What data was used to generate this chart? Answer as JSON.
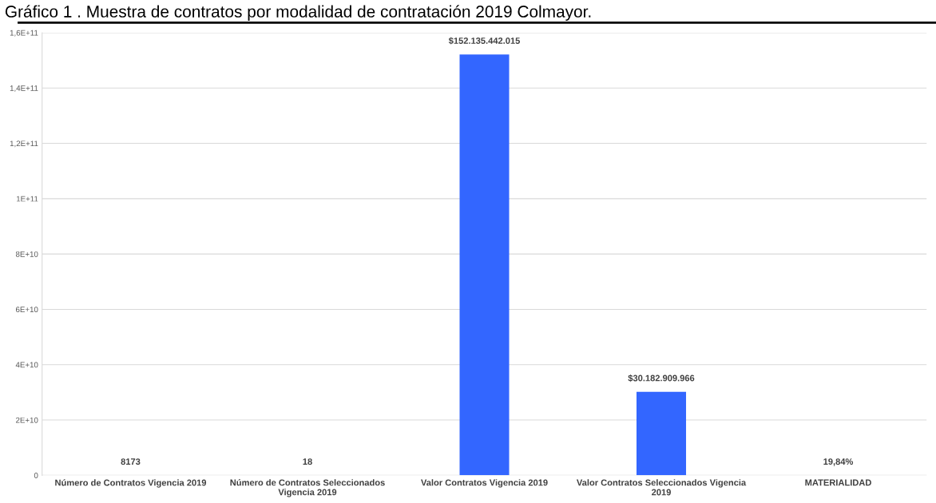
{
  "chart_data": {
    "type": "bar",
    "title": "Gráfico 1 . Muestra de contratos por modalidad de contratación 2019 Colmayor.",
    "categories": [
      "Número de Contratos Vigencia 2019",
      "Número de Contratos Seleccionados\nVigencia 2019",
      "Valor Contratos Vigencia 2019",
      "Valor Contratos Seleccionados Vigencia\n2019",
      "MATERIALIDAD"
    ],
    "values": [
      8173,
      18,
      152135442015,
      30182909966,
      19.84
    ],
    "value_labels": [
      "8173",
      "18",
      "$152.135.442.015",
      "$30.182.909.966",
      "19,84%"
    ],
    "color": "#3366ff",
    "ylim": [
      0,
      160000000000
    ],
    "yticks": [
      0,
      {
        "value": 20000000000,
        "label": "2E+10"
      },
      {
        "value": 40000000000,
        "label": "4E+10"
      },
      {
        "value": 60000000000,
        "label": "6E+10"
      },
      {
        "value": 80000000000,
        "label": "8E+10"
      },
      {
        "value": 100000000000,
        "label": "1E+11"
      },
      {
        "value": 120000000000,
        "label": "1,2E+11"
      },
      {
        "value": 140000000000,
        "label": "1,4E+11"
      },
      {
        "value": 160000000000,
        "label": "1,6E+11"
      }
    ],
    "grid": "y",
    "legend": false
  }
}
